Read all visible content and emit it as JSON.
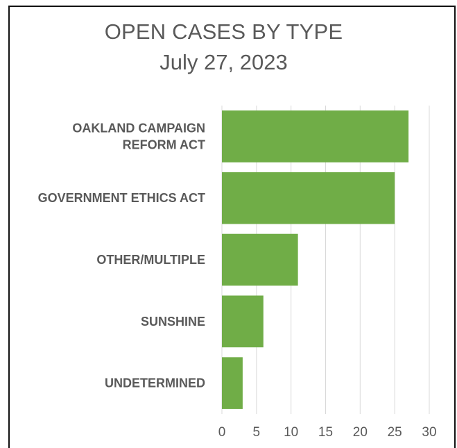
{
  "chart_data": {
    "type": "bar",
    "orientation": "horizontal",
    "title": "OPEN CASES BY TYPE",
    "subtitle": "July 27, 2023",
    "categories": [
      [
        "OAKLAND CAMPAIGN",
        "REFORM ACT"
      ],
      [
        "GOVERNMENT ETHICS ACT"
      ],
      [
        "OTHER/MULTIPLE"
      ],
      [
        "SUNSHINE"
      ],
      [
        "UNDETERMINED"
      ]
    ],
    "values": [
      27,
      25,
      11,
      6,
      3
    ],
    "xlim": [
      0,
      30
    ],
    "xticks": [
      "0",
      "5",
      "10",
      "15",
      "20",
      "25",
      "30"
    ],
    "xlabel": "",
    "ylabel": "",
    "grid": "vertical",
    "bar_color": "#70ad47",
    "grid_color": "#d9d9d9",
    "text_color": "#595959"
  }
}
